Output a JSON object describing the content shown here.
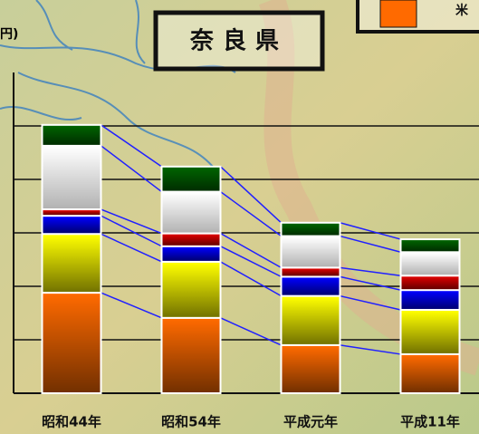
{
  "chart_data": {
    "type": "stacked_bar",
    "title": "奈良県",
    "y_label": "円)",
    "categories": [
      "昭和44年",
      "昭和54年",
      "平成元年",
      "平成11年"
    ],
    "series": [
      {
        "name": "米",
        "color": "#ff6a00",
        "values": [
          1.88,
          1.41,
          0.9,
          0.73
        ]
      },
      {
        "color": "#ffff00",
        "values": [
          1.1,
          1.05,
          0.92,
          0.83
        ]
      },
      {
        "color": "#0000ff",
        "values": [
          0.34,
          0.29,
          0.36,
          0.37
        ]
      },
      {
        "color": "#e00000",
        "values": [
          0.12,
          0.24,
          0.17,
          0.27
        ]
      },
      {
        "color": "#ffffff",
        "values": [
          1.19,
          0.78,
          0.59,
          0.44
        ]
      },
      {
        "color": "#006400",
        "values": [
          0.39,
          0.47,
          0.25,
          0.24
        ]
      }
    ],
    "ylim": [
      0,
      6
    ],
    "yticks": [
      1,
      2,
      3,
      4,
      5
    ],
    "grid": true,
    "connector_color": "#2020ff"
  }
}
